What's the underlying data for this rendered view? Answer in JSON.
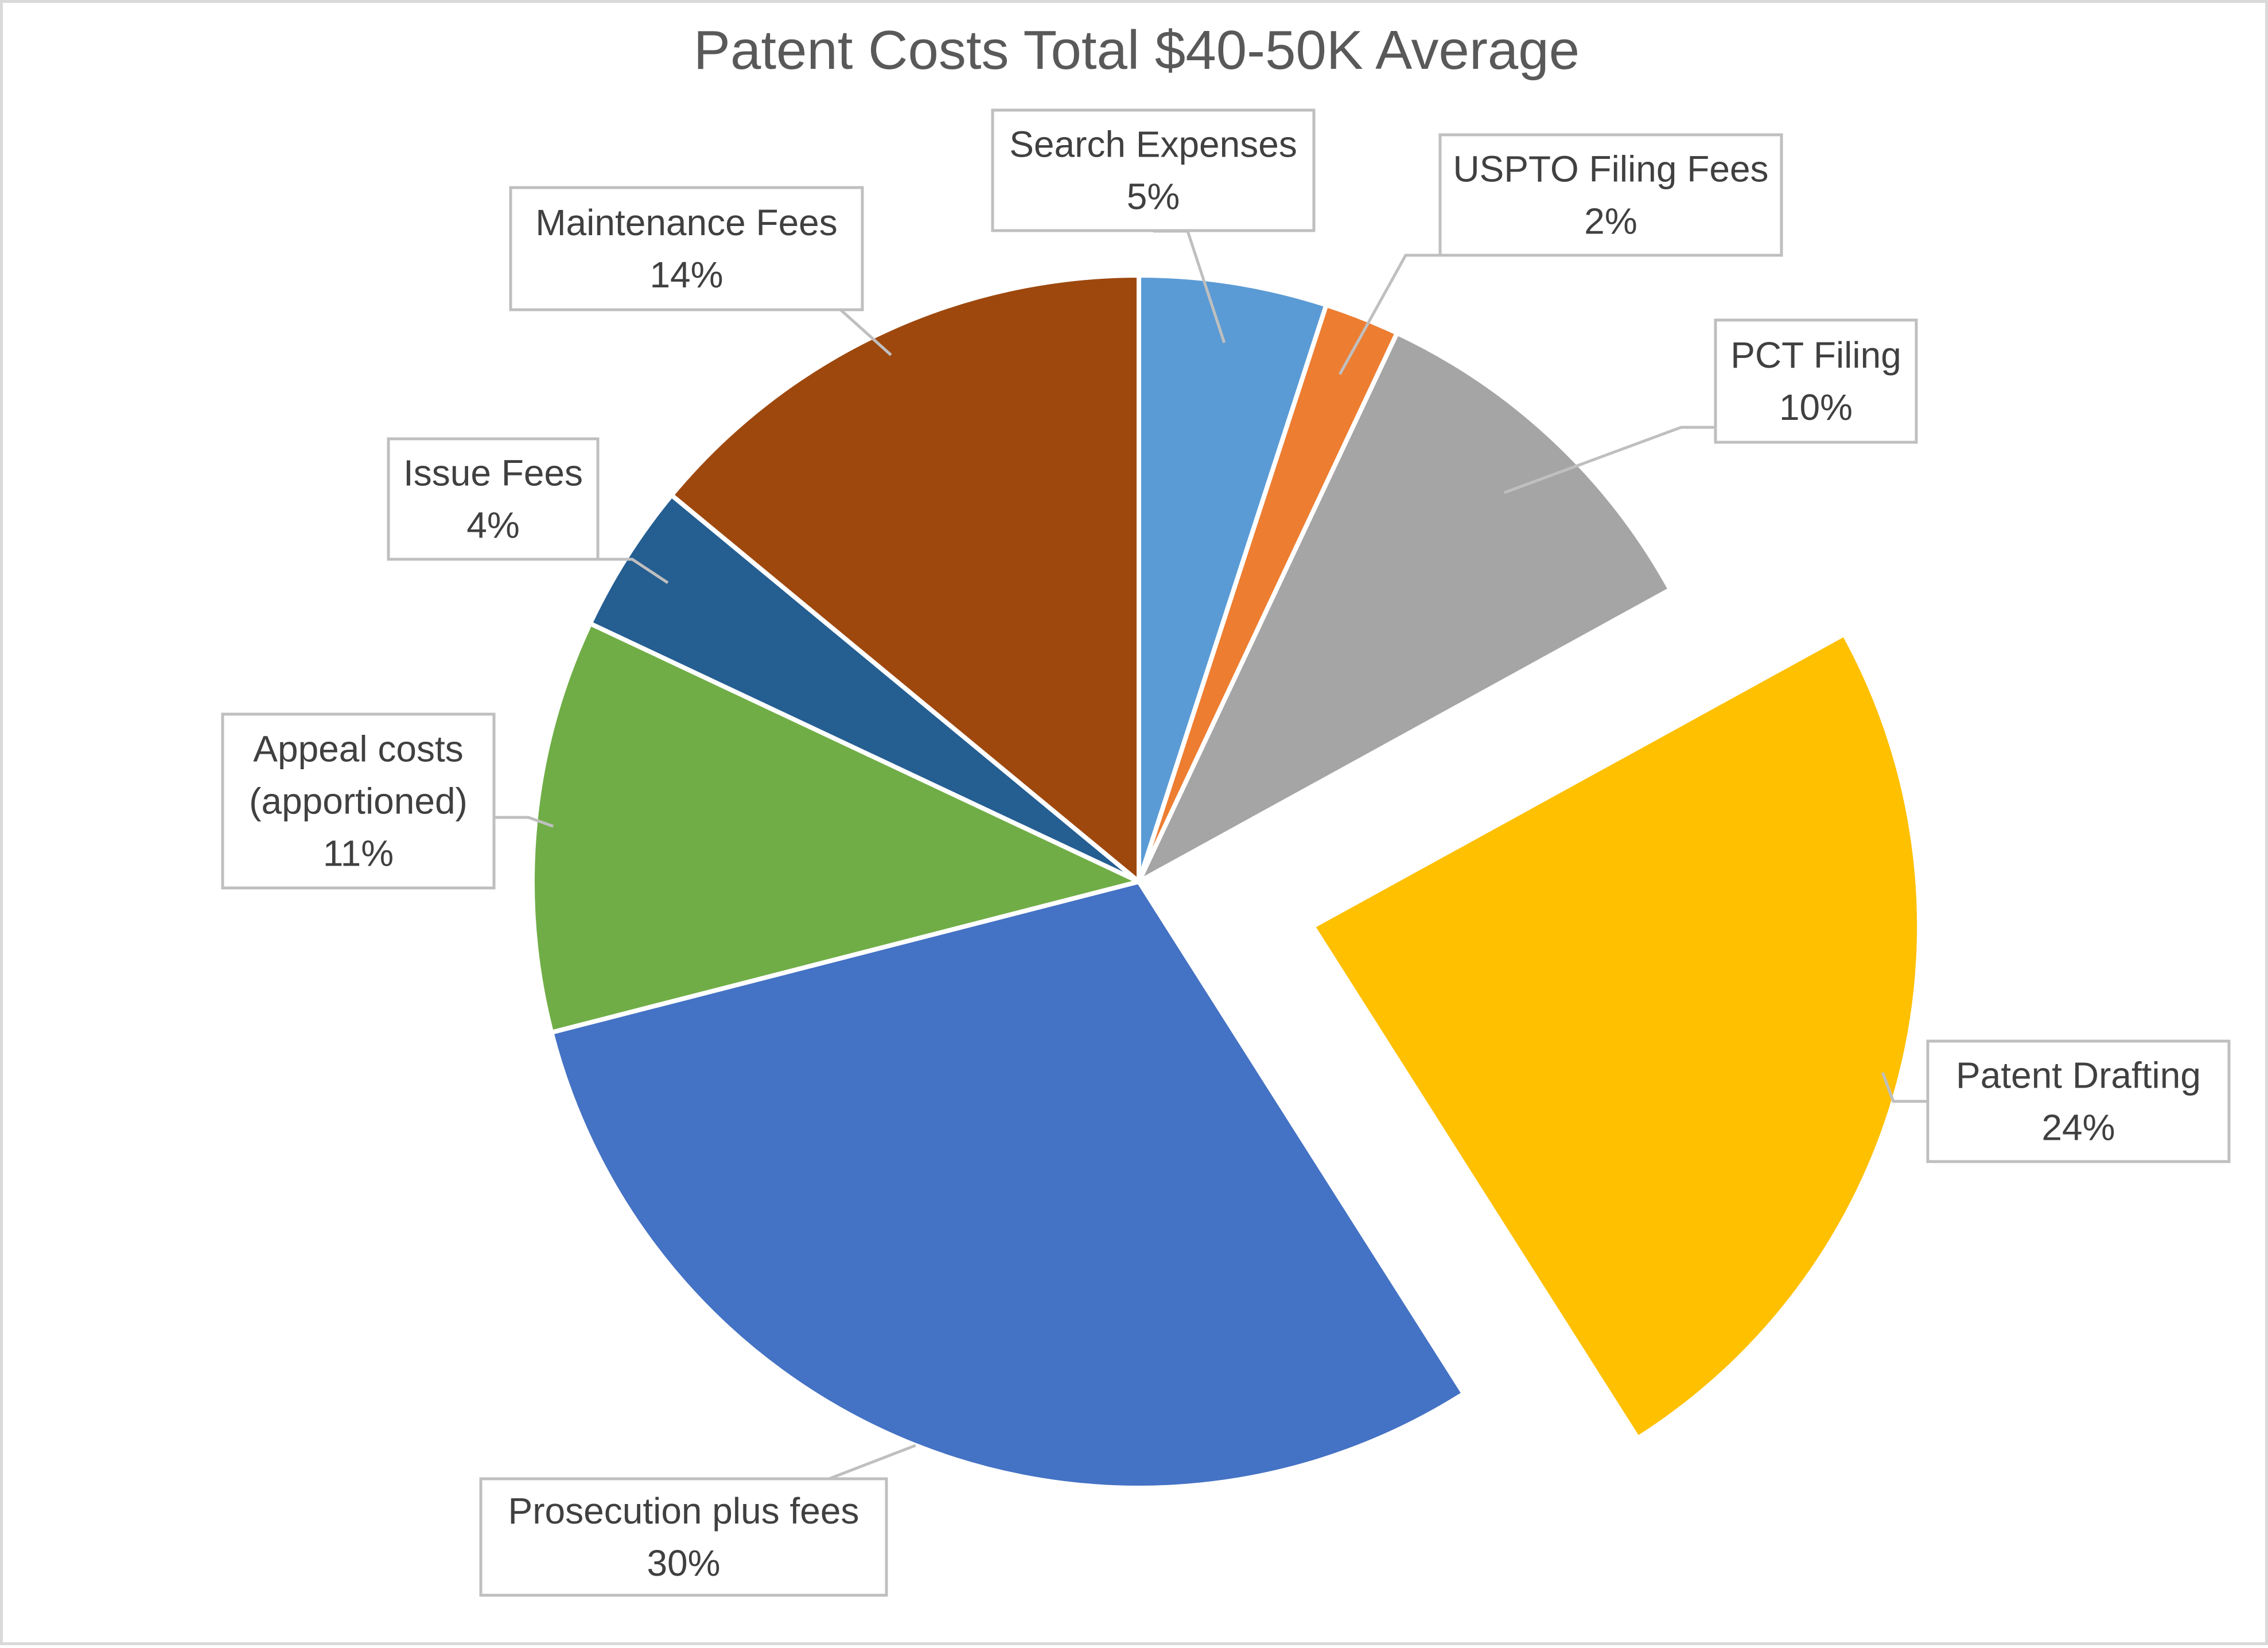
{
  "chart_data": {
    "type": "pie",
    "title": "Patent Costs Total $40-50K Average",
    "start_angle_deg": 0,
    "direction": "clockwise",
    "slices": [
      {
        "label": "Search Expenses",
        "value": 5,
        "value_text": "5%",
        "color": "#5b9bd5",
        "exploded": false
      },
      {
        "label": "USPTO Filing Fees",
        "value": 2,
        "value_text": "2%",
        "color": "#ed7d31",
        "exploded": false
      },
      {
        "label": "PCT Filing",
        "value": 10,
        "value_text": "10%",
        "color": "#a5a5a5",
        "exploded": false
      },
      {
        "label": "Patent Drafting",
        "value": 24,
        "value_text": "24%",
        "color": "#ffc000",
        "exploded": true
      },
      {
        "label": "Prosecution plus fees",
        "value": 30,
        "value_text": "30%",
        "color": "#4472c4",
        "exploded": false
      },
      {
        "label": "Appeal costs (apportioned)",
        "label_lines": [
          "Appeal costs",
          "(apportioned)"
        ],
        "value": 11,
        "value_text": "11%",
        "color": "#70ad47",
        "exploded": false
      },
      {
        "label": "Issue Fees",
        "value": 4,
        "value_text": "4%",
        "color": "#255e91",
        "exploded": false
      },
      {
        "label": "Maintenance Fees",
        "value": 14,
        "value_text": "14%",
        "color": "#9e480e",
        "exploded": false
      }
    ]
  }
}
